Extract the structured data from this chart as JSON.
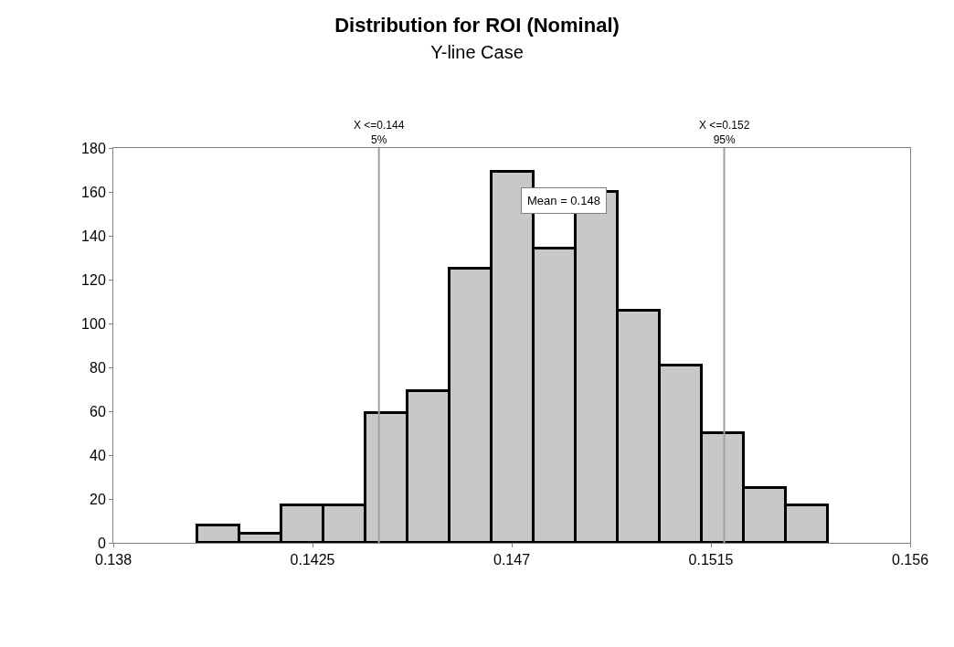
{
  "chart_data": {
    "type": "histogram",
    "title": "Distribution for ROI (Nominal)",
    "subtitle": "Y-line Case",
    "bins": [
      0.1399,
      0.14085,
      0.1418,
      0.14275,
      0.1437,
      0.14465,
      0.1456,
      0.14655,
      0.1475,
      0.14845,
      0.1494,
      0.15035,
      0.1513,
      0.15225,
      0.1532,
      0.15415
    ],
    "values": [
      8,
      4,
      17,
      17,
      59,
      69,
      125,
      169,
      134,
      160,
      106,
      81,
      50,
      25,
      17
    ],
    "color": "#c8c8c8",
    "xlim": [
      0.138,
      0.156
    ],
    "xticks": [
      0.138,
      0.1425,
      0.147,
      0.1515,
      0.156
    ],
    "ylim": [
      0,
      180
    ],
    "yticks": [
      0,
      20,
      40,
      60,
      80,
      100,
      120,
      140,
      160,
      180
    ],
    "ref_lines": [
      {
        "axis": "x",
        "value": 0.144,
        "label": "X <=0.144\n5%",
        "color": "#a0a0a0"
      },
      {
        "axis": "x",
        "value": 0.1518,
        "label": "X <=0.152\n95%",
        "color": "#a0a0a0"
      }
    ],
    "annotations": [
      "Mean = 0.148"
    ],
    "legend": false
  }
}
